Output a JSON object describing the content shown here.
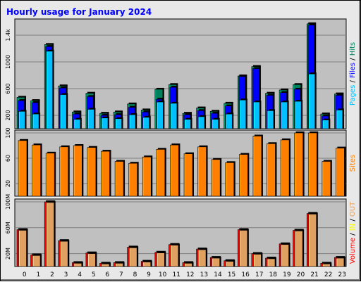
{
  "title": "Hourly usage for January 2024",
  "colors": {
    "pages": "#00c0ff",
    "files": "#0000ff",
    "hits": "#00805c",
    "sites": "#ff8000",
    "in": "#ffff00",
    "out": "#e0a060",
    "volume": "#ff0000",
    "panel_bg": "#c0c0c0",
    "frame_bg": "#e8e8e8"
  },
  "legend": {
    "right_top": [
      {
        "text": "Pages",
        "color": "#00c0ff"
      },
      {
        "text": " / ",
        "color": "#000000"
      },
      {
        "text": "Files",
        "color": "#0000ff"
      },
      {
        "text": " / ",
        "color": "#000000"
      },
      {
        "text": "Hits",
        "color": "#00805c"
      }
    ],
    "right_mid": [
      {
        "text": "Sites",
        "color": "#ff8000"
      }
    ],
    "right_bottom": [
      {
        "text": "Volume",
        "color": "#ff0000"
      },
      {
        "text": " / ",
        "color": "#000000"
      },
      {
        "text": "IN",
        "color": "#ffff00"
      },
      {
        "text": " / ",
        "color": "#000000"
      },
      {
        "text": "OUT",
        "color": "#e0a060"
      }
    ]
  },
  "chart_data": [
    {
      "type": "bar",
      "name": "hits-files-pages",
      "categories": [
        "0",
        "1",
        "2",
        "3",
        "4",
        "5",
        "6",
        "7",
        "8",
        "9",
        "10",
        "11",
        "12",
        "13",
        "14",
        "15",
        "16",
        "17",
        "18",
        "19",
        "20",
        "21",
        "22",
        "23"
      ],
      "ylim": [
        0,
        1600
      ],
      "ytick_labels": [
        {
          "value": 200,
          "label": "200"
        },
        {
          "value": 600,
          "label": "600"
        },
        {
          "value": 1000,
          "label": "1000"
        },
        {
          "value": 1400,
          "label": "1.4k"
        }
      ],
      "series": [
        {
          "name": "Hits",
          "values": [
            470,
            420,
            1260,
            640,
            250,
            530,
            230,
            250,
            370,
            280,
            590,
            660,
            230,
            310,
            260,
            380,
            790,
            930,
            530,
            580,
            660,
            1570,
            220,
            520
          ]
        },
        {
          "name": "Files",
          "values": [
            420,
            390,
            1230,
            610,
            220,
            480,
            200,
            210,
            320,
            250,
            440,
            620,
            210,
            270,
            230,
            340,
            780,
            900,
            500,
            540,
            590,
            1550,
            190,
            500
          ]
        },
        {
          "name": "Pages",
          "values": [
            260,
            220,
            1160,
            510,
            140,
            290,
            160,
            150,
            210,
            170,
            400,
            380,
            140,
            180,
            140,
            220,
            430,
            400,
            270,
            400,
            410,
            820,
            130,
            280
          ]
        }
      ]
    },
    {
      "type": "bar",
      "name": "sites",
      "categories": [
        "0",
        "1",
        "2",
        "3",
        "4",
        "5",
        "6",
        "7",
        "8",
        "9",
        "10",
        "11",
        "12",
        "13",
        "14",
        "15",
        "16",
        "17",
        "18",
        "19",
        "20",
        "21",
        "22",
        "23"
      ],
      "ylim": [
        0,
        100
      ],
      "ytick_labels": [
        {
          "value": 20,
          "label": "20"
        },
        {
          "value": 60,
          "label": "60"
        },
        {
          "value": 100,
          "label": "100"
        }
      ],
      "series": [
        {
          "name": "Sites",
          "values": [
            88,
            81,
            68,
            78,
            80,
            77,
            71,
            55,
            52,
            62,
            74,
            81,
            67,
            78,
            58,
            53,
            66,
            95,
            83,
            89,
            100,
            100,
            55,
            76
          ]
        }
      ]
    },
    {
      "type": "bar",
      "name": "volume",
      "categories": [
        "0",
        "1",
        "2",
        "3",
        "4",
        "5",
        "6",
        "7",
        "8",
        "9",
        "10",
        "11",
        "12",
        "13",
        "14",
        "15",
        "16",
        "17",
        "18",
        "19",
        "20",
        "21",
        "22",
        "23"
      ],
      "ylim": [
        0,
        100
      ],
      "ytick_labels": [
        {
          "value": 20,
          "label": "20M"
        },
        {
          "value": 60,
          "label": "60M"
        },
        {
          "value": 100,
          "label": "100M"
        }
      ],
      "series": [
        {
          "name": "Volume",
          "values": [
            57,
            18,
            100,
            40,
            6,
            21,
            5,
            6,
            30,
            8,
            22,
            34,
            6,
            27,
            14,
            9,
            57,
            20,
            13,
            35,
            56,
            82,
            5,
            14
          ]
        },
        {
          "name": "OUT",
          "values": [
            56,
            17,
            99,
            39,
            5,
            20,
            4,
            5,
            29,
            7,
            21,
            33,
            5,
            26,
            13,
            8,
            56,
            19,
            12,
            34,
            55,
            81,
            4,
            13
          ]
        }
      ]
    }
  ]
}
